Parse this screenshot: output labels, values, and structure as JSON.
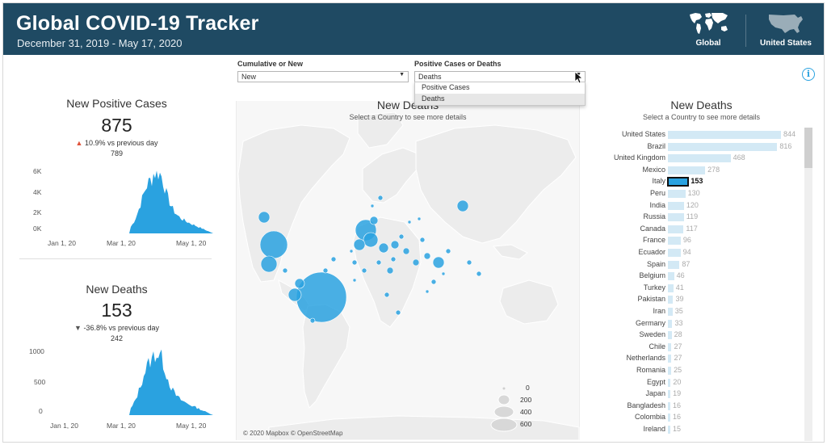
{
  "header": {
    "title": "Global COVID-19 Tracker",
    "date_range": "December 31, 2019 - May 17, 2020",
    "nav_global_label": "Global",
    "nav_us_label": "United States",
    "bg_color": "#1f4a63"
  },
  "filters": {
    "cumulative": {
      "label": "Cumulative or New",
      "value": "New"
    },
    "metric": {
      "label": "Positive Cases or Deaths",
      "value": "Deaths",
      "options": [
        "Positive Cases",
        "Deaths"
      ],
      "dropdown_open": true
    }
  },
  "info_icon_glyph": "i",
  "cases_panel": {
    "title": "New Positive Cases",
    "value": "875",
    "change": "10.9% vs previous day",
    "change_direction": "up",
    "previous": "789",
    "accent": "#2aa2e0",
    "trend_color": "#e0533a",
    "y_ticks": [
      "6K",
      "4K",
      "2K",
      "0K"
    ],
    "x_ticks": [
      "Jan 1, 20",
      "Mar 1, 20",
      "May 1, 20"
    ]
  },
  "deaths_panel": {
    "title": "New Deaths",
    "value": "153",
    "change": "-36.8% vs previous day",
    "change_direction": "down",
    "previous": "242",
    "y_ticks": [
      "1000",
      "500",
      "0"
    ],
    "x_ticks": [
      "Jan 1, 20",
      "Mar 1, 20",
      "May 1, 20"
    ]
  },
  "map": {
    "title": "New Deaths",
    "subtitle": "Select a Country to see more details",
    "copyright": "© 2020 Mapbox © OpenStreetMap",
    "legend": [
      "0",
      "200",
      "400",
      "600"
    ],
    "bubble_color": "#2aa2e0"
  },
  "bar_panel": {
    "title": "New Deaths",
    "subtitle": "Select a Country to see more details",
    "bar_color": "#d3e9f5",
    "selected_color": "#2aa2e0",
    "selected_country": "Italy",
    "rows": [
      {
        "country": "United States",
        "value": 844
      },
      {
        "country": "Brazil",
        "value": 816
      },
      {
        "country": "United Kingdom",
        "value": 468
      },
      {
        "country": "Mexico",
        "value": 278
      },
      {
        "country": "Italy",
        "value": 153
      },
      {
        "country": "Peru",
        "value": 130
      },
      {
        "country": "India",
        "value": 120
      },
      {
        "country": "Russia",
        "value": 119
      },
      {
        "country": "Canada",
        "value": 117
      },
      {
        "country": "France",
        "value": 96
      },
      {
        "country": "Ecuador",
        "value": 94
      },
      {
        "country": "Spain",
        "value": 87
      },
      {
        "country": "Belgium",
        "value": 46
      },
      {
        "country": "Turkey",
        "value": 41
      },
      {
        "country": "Pakistan",
        "value": 39
      },
      {
        "country": "Iran",
        "value": 35
      },
      {
        "country": "Germany",
        "value": 33
      },
      {
        "country": "Sweden",
        "value": 28
      },
      {
        "country": "Chile",
        "value": 27
      },
      {
        "country": "Netherlands",
        "value": 27
      },
      {
        "country": "Romania",
        "value": 25
      },
      {
        "country": "Egypt",
        "value": 20
      },
      {
        "country": "Japan",
        "value": 19
      },
      {
        "country": "Bangladesh",
        "value": 16
      },
      {
        "country": "Colombia",
        "value": 16
      },
      {
        "country": "Ireland",
        "value": 15
      }
    ]
  }
}
